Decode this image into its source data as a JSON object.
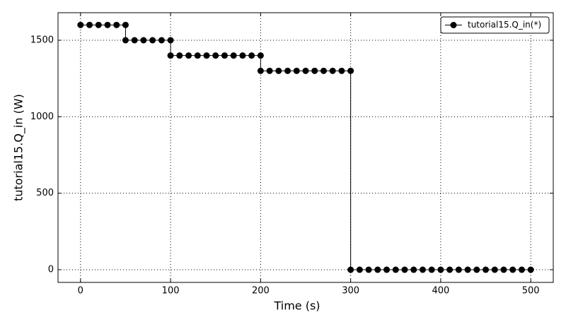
{
  "chart_data": {
    "type": "line",
    "xlabel": "Time (s)",
    "ylabel": "tutorial15.Q_in (W)",
    "series": [
      {
        "name": "tutorial15.Q_in(*)",
        "color": "#000000",
        "x": [
          0,
          10,
          20,
          30,
          40,
          50,
          50,
          60,
          70,
          80,
          90,
          100,
          100,
          110,
          120,
          130,
          140,
          150,
          160,
          170,
          180,
          190,
          200,
          200,
          210,
          220,
          230,
          240,
          250,
          260,
          270,
          280,
          290,
          300,
          300,
          310,
          320,
          330,
          340,
          350,
          360,
          370,
          380,
          390,
          400,
          410,
          420,
          430,
          440,
          450,
          460,
          470,
          480,
          490,
          500
        ],
        "values": [
          1600,
          1600,
          1600,
          1600,
          1600,
          1600,
          1500,
          1500,
          1500,
          1500,
          1500,
          1500,
          1400,
          1400,
          1400,
          1400,
          1400,
          1400,
          1400,
          1400,
          1400,
          1400,
          1400,
          1300,
          1300,
          1300,
          1300,
          1300,
          1300,
          1300,
          1300,
          1300,
          1300,
          1300,
          0,
          0,
          0,
          0,
          0,
          0,
          0,
          0,
          0,
          0,
          0,
          0,
          0,
          0,
          0,
          0,
          0,
          0,
          0,
          0,
          0
        ]
      }
    ],
    "xlim": [
      -25,
      525
    ],
    "ylim": [
      -83,
      1680
    ],
    "xticks": [
      0,
      100,
      200,
      300,
      400,
      500
    ],
    "yticks": [
      0,
      500,
      1000,
      1500
    ],
    "grid": true,
    "legend": "upper right"
  }
}
